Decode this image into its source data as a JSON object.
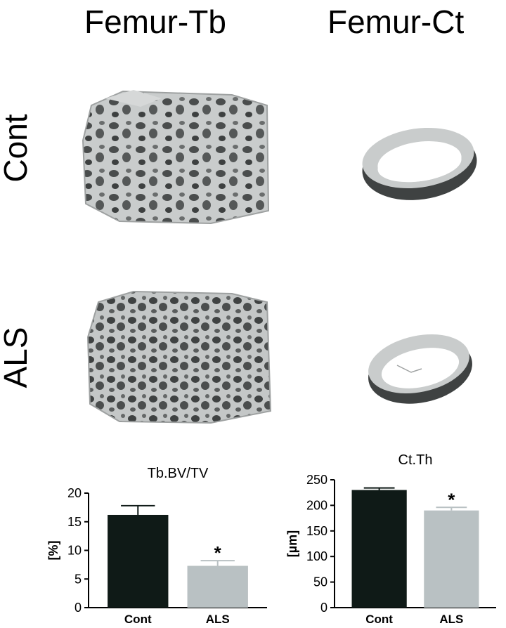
{
  "panel_titles": {
    "femur_tb": "Femur-Tb",
    "femur_ct": "Femur-Ct"
  },
  "row_labels": {
    "cont": "Cont",
    "als": "ALS"
  },
  "colors": {
    "cont_bar": "#0f1a17",
    "als_bar": "#b9c1c3",
    "bone": "#c9cccc",
    "bone_shadow": "#3f4242"
  },
  "chart_data": [
    {
      "type": "bar",
      "title": "Tb.BV/TV",
      "ylabel": "[%]",
      "categories": [
        "Cont",
        "ALS"
      ],
      "values": [
        16.2,
        7.3
      ],
      "errors": [
        1.6,
        0.9
      ],
      "significance": [
        "",
        "*"
      ],
      "ylim": [
        0,
        20
      ],
      "yticks": [
        0,
        5,
        10,
        15,
        20
      ],
      "grid": false
    },
    {
      "type": "bar",
      "title": "Ct.Th",
      "ylabel": "[µm]",
      "categories": [
        "Cont",
        "ALS"
      ],
      "values": [
        230,
        190
      ],
      "errors": [
        4,
        6
      ],
      "significance": [
        "",
        "*"
      ],
      "ylim": [
        0,
        250
      ],
      "yticks": [
        0,
        50,
        100,
        150,
        200,
        250
      ],
      "grid": false
    }
  ]
}
